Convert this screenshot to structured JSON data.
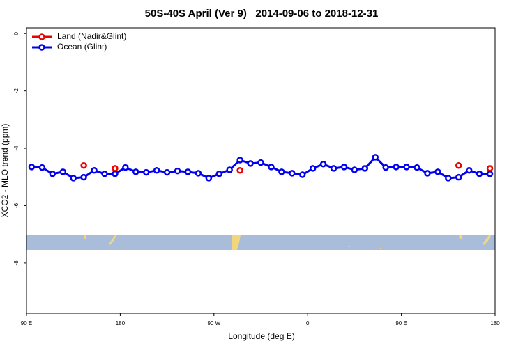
{
  "chart_data": {
    "type": "line",
    "title": "50S-40S April (Ver 9)   2014-09-06 to 2018-12-31",
    "x_label": "Longitude (deg E)",
    "y_label": "XCO2 - MLO trend (ppm)",
    "x": [
      95,
      105,
      115,
      125,
      135,
      145,
      155,
      165,
      175,
      185,
      195,
      205,
      215,
      225,
      235,
      245,
      255,
      265,
      275,
      285,
      295,
      305,
      315,
      325,
      335,
      345,
      355,
      365,
      375,
      385,
      395,
      405,
      415,
      425,
      435,
      445,
      455,
      465,
      475,
      485,
      495,
      505,
      515,
      525,
      535
    ],
    "series": [
      {
        "name": "Land (Nadir&Glint)",
        "color": "#ee0000",
        "values": [
          null,
          null,
          null,
          null,
          null,
          -4.6,
          null,
          null,
          -4.7,
          null,
          null,
          null,
          null,
          null,
          null,
          null,
          null,
          null,
          null,
          null,
          -4.77,
          null,
          null,
          null,
          null,
          null,
          null,
          null,
          null,
          null,
          null,
          null,
          null,
          null,
          null,
          null,
          null,
          null,
          null,
          null,
          null,
          -4.6,
          null,
          null,
          -4.7
        ]
      },
      {
        "name": "Ocean (Glint)",
        "color": "#0000ee",
        "values": [
          -4.65,
          -4.67,
          -4.89,
          -4.82,
          -5.04,
          -5.01,
          -4.77,
          -4.89,
          -4.89,
          -4.67,
          -4.82,
          -4.84,
          -4.77,
          -4.84,
          -4.79,
          -4.82,
          -4.87,
          -5.04,
          -4.89,
          -4.75,
          -4.41,
          -4.53,
          -4.5,
          -4.65,
          -4.82,
          -4.87,
          -4.92,
          -4.7,
          -4.55,
          -4.7,
          -4.65,
          -4.75,
          -4.7,
          -4.31,
          -4.67,
          -4.65,
          -4.65,
          -4.67,
          -4.87,
          -4.82,
          -5.04,
          -5.01,
          -4.77,
          -4.89,
          -4.89
        ]
      }
    ],
    "xlim": [
      90,
      540
    ],
    "xticks": [
      {
        "value": 90,
        "label": "90 E"
      },
      180,
      {
        "value": 270,
        "label": "90 W"
      },
      {
        "value": 360,
        "label": "0"
      },
      {
        "value": 450,
        "label": "90 E"
      },
      {
        "value": 540,
        "label": "180"
      }
    ],
    "ylim": [
      -9.75,
      0.2
    ],
    "yticks": [
      0,
      -2,
      -4,
      -6,
      -8
    ],
    "legend": "top-left"
  }
}
